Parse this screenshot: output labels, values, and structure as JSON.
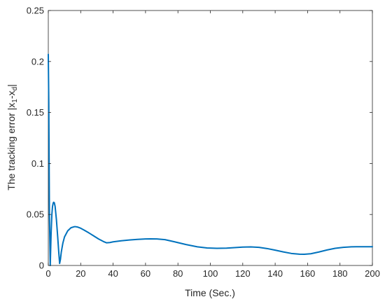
{
  "chart_data": {
    "type": "line",
    "title": "",
    "xlabel": "Time (Sec.)",
    "ylabel": {
      "main": "The tracking error |x",
      "sub1": "1",
      "mid": "-x",
      "sub2": "d",
      "end": "|"
    },
    "xlim": [
      0,
      200
    ],
    "ylim": [
      0,
      0.25
    ],
    "xticks": [
      0,
      20,
      40,
      60,
      80,
      100,
      120,
      140,
      160,
      180,
      200
    ],
    "xtick_labels": [
      "0",
      "20",
      "40",
      "60",
      "80",
      "100",
      "120",
      "140",
      "160",
      "180",
      "200"
    ],
    "yticks": [
      0,
      0.05,
      0.1,
      0.15,
      0.2,
      0.25
    ],
    "ytick_labels": [
      "0",
      "0.05",
      "0.1",
      "0.15",
      "0.2",
      "0.25"
    ],
    "grid": false,
    "line_color": "#0072BD",
    "series": [
      {
        "values_x": [
          0,
          0.3,
          0.7,
          1.2,
          1.7,
          2.2,
          2.6,
          3.0,
          3.3,
          3.7,
          4.2,
          5.0,
          5.8,
          6.5,
          7.0,
          7.5,
          8.0,
          9.0,
          10,
          12,
          14,
          16,
          17,
          18,
          20,
          22,
          25,
          28,
          31,
          34,
          36,
          38,
          40,
          45,
          50,
          55,
          60,
          63,
          67,
          72,
          78,
          85,
          92,
          98,
          104,
          110,
          115,
          120,
          125,
          130,
          135,
          140,
          145,
          150,
          155,
          158,
          162,
          167,
          172,
          177,
          182,
          187,
          192,
          197,
          200
        ],
        "values_y": [
          0.207,
          0.16,
          0.05,
          0.0,
          0.03,
          0.05,
          0.058,
          0.061,
          0.062,
          0.0615,
          0.058,
          0.045,
          0.028,
          0.012,
          0.002,
          0.006,
          0.013,
          0.022,
          0.028,
          0.034,
          0.037,
          0.038,
          0.038,
          0.0377,
          0.0365,
          0.0348,
          0.032,
          0.029,
          0.026,
          0.0235,
          0.0222,
          0.0225,
          0.0232,
          0.0242,
          0.025,
          0.0256,
          0.026,
          0.0261,
          0.026,
          0.0253,
          0.0232,
          0.0205,
          0.0183,
          0.0172,
          0.0168,
          0.017,
          0.0175,
          0.018,
          0.0182,
          0.0178,
          0.0166,
          0.015,
          0.0133,
          0.0118,
          0.0111,
          0.011,
          0.0115,
          0.0132,
          0.0152,
          0.0168,
          0.0178,
          0.0183,
          0.0184,
          0.0184,
          0.0184
        ]
      }
    ]
  }
}
